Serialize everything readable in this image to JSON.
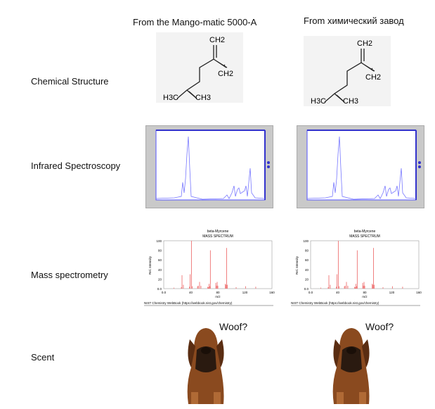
{
  "columns": [
    {
      "header": "From the Mango-matic 5000-A",
      "woof": "Woof?"
    },
    {
      "header": "From химический завод",
      "woof": "Woof?"
    }
  ],
  "rows": {
    "structure": "Chemical Structure",
    "ir": "Infrared Spectroscopy",
    "ms": "Mass spectrometry",
    "scent": "Scent"
  },
  "molecule": {
    "ch2_top": "CH2",
    "ch2_right": "CH2",
    "h3c": "H3C",
    "ch3": "CH3"
  },
  "mass_spectrum": {
    "title": "beta-Myrcene",
    "subtitle": "MASS SPECTRUM",
    "ylabel": "Rel. Intensity",
    "xlabel": "m/z",
    "footer": "NIST Chemistry WebBook (https://webbook.nist.gov/chemistry)",
    "xticks": [
      "0.0",
      "40",
      "80",
      "120",
      "160"
    ],
    "yticks": [
      "0.0",
      "20",
      "40",
      "60",
      "80",
      "100"
    ],
    "color": "#f08080"
  },
  "chart_data": {
    "type": "bar",
    "title": "beta-Myrcene MASS SPECTRUM",
    "xlabel": "m/z",
    "ylabel": "Rel. Intensity",
    "xlim": [
      0,
      160
    ],
    "ylim": [
      0,
      100
    ],
    "x": [
      15,
      26,
      27,
      29,
      38,
      39,
      41,
      42,
      50,
      51,
      53,
      55,
      65,
      66,
      67,
      68,
      69,
      77,
      78,
      79,
      80,
      91,
      92,
      93,
      94,
      107,
      121,
      136
    ],
    "values": [
      2,
      3,
      28,
      8,
      4,
      30,
      100,
      5,
      5,
      6,
      14,
      6,
      4,
      3,
      10,
      5,
      80,
      12,
      6,
      14,
      6,
      10,
      8,
      85,
      8,
      3,
      5,
      4
    ]
  }
}
